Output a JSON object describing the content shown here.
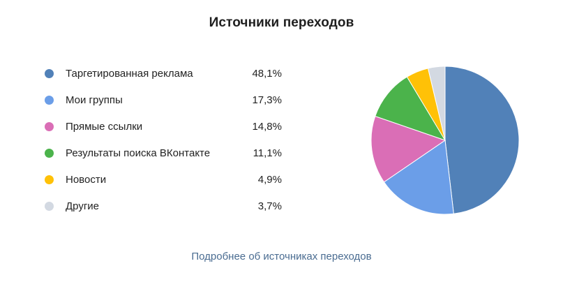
{
  "title": "Источники переходов",
  "link_label": "Подробнее об источниках переходов",
  "legend": [
    {
      "label": "Таргетированная реклама",
      "value_text": "48,1%",
      "color": "#5181b8"
    },
    {
      "label": "Мои группы",
      "value_text": "17,3%",
      "color": "#6b9ee8"
    },
    {
      "label": "Прямые ссылки",
      "value_text": "14,8%",
      "color": "#da6eb6"
    },
    {
      "label": "Результаты поиска ВКонтакте",
      "value_text": "11,1%",
      "color": "#4bb34b"
    },
    {
      "label": "Новости",
      "value_text": "4,9%",
      "color": "#ffc107"
    },
    {
      "label": "Другие",
      "value_text": "3,7%",
      "color": "#d3d9e2"
    }
  ],
  "chart_data": {
    "type": "pie",
    "title": "Источники переходов",
    "categories": [
      "Таргетированная реклама",
      "Мои группы",
      "Прямые ссылки",
      "Результаты поиска ВКонтакте",
      "Новости",
      "Другие"
    ],
    "values": [
      48.1,
      17.3,
      14.8,
      11.1,
      4.9,
      3.7
    ],
    "unit": "%",
    "colors": [
      "#5181b8",
      "#6b9ee8",
      "#da6eb6",
      "#4bb34b",
      "#ffc107",
      "#d3d9e2"
    ],
    "legend_position": "left"
  }
}
